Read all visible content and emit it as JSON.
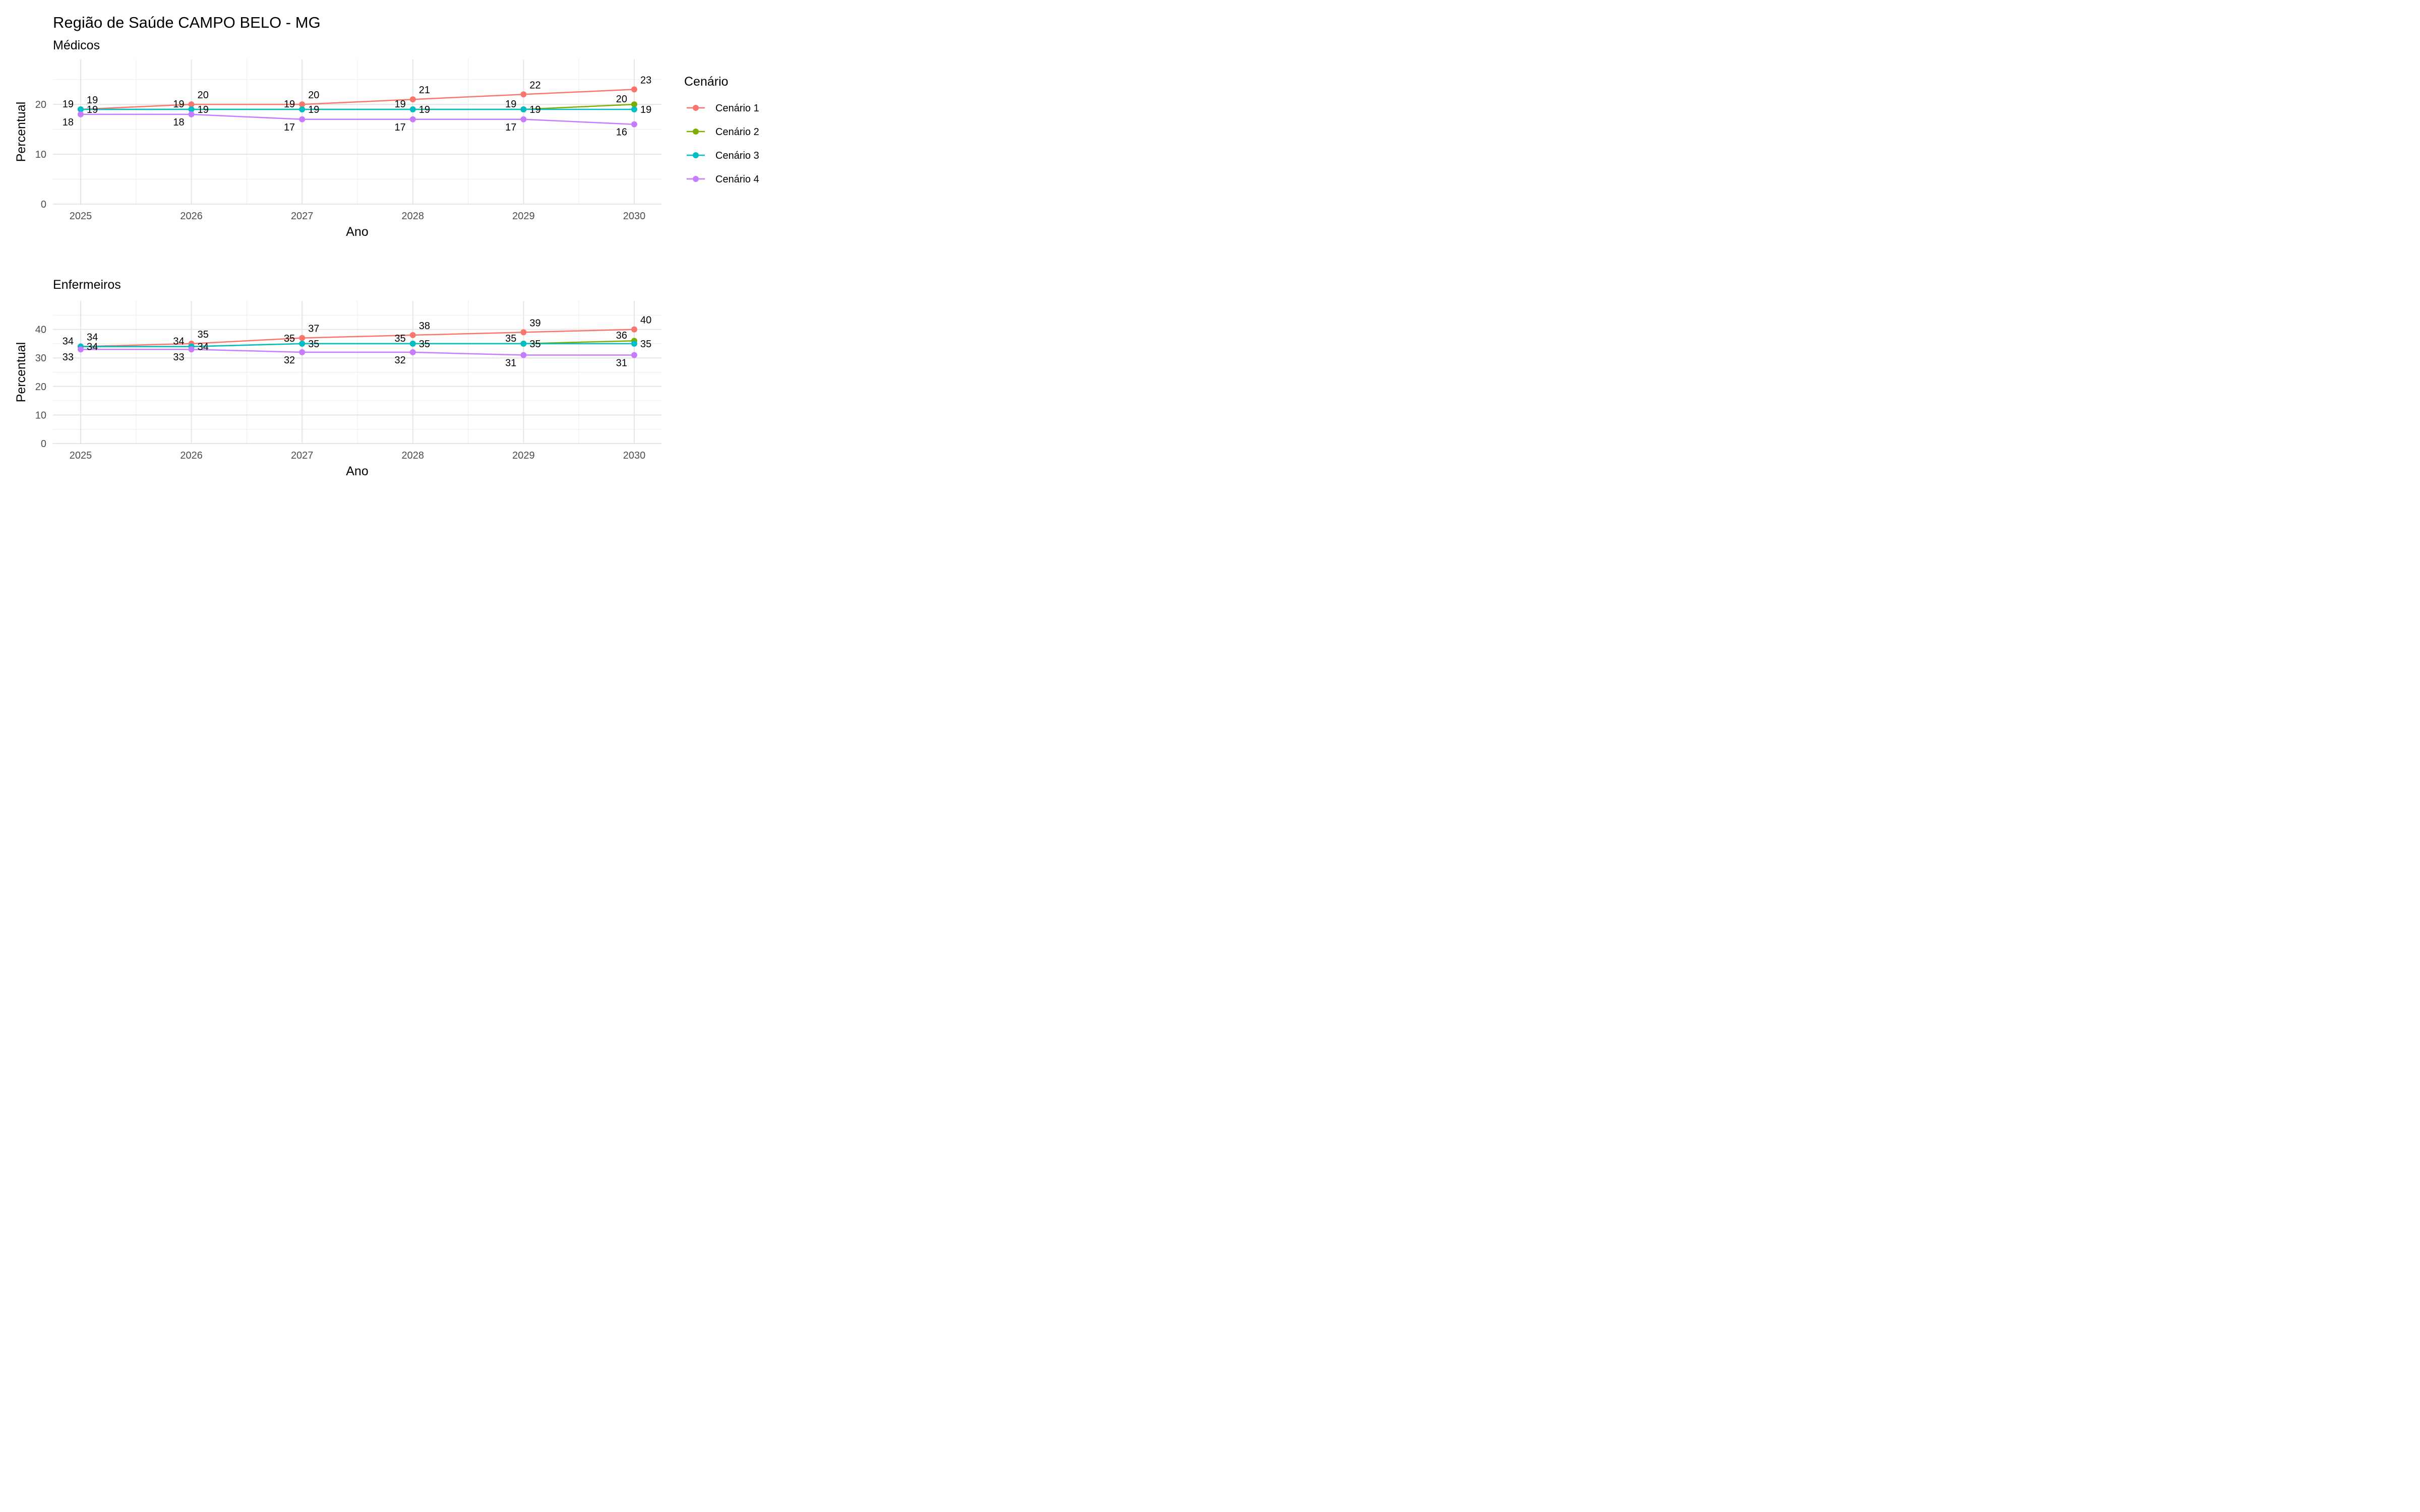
{
  "title": "Região de Saúde CAMPO BELO - MG",
  "legend": {
    "title": "Cenário",
    "placement": "right",
    "entries": [
      "Cenário 1",
      "Cenário 2",
      "Cenário 3",
      "Cenário 4"
    ]
  },
  "colors": {
    "Cenário 1": "#F8766D",
    "Cenário 2": "#7CAE00",
    "Cenário 3": "#00BFC4",
    "Cenário 4": "#C77CFF"
  },
  "chart_data": [
    {
      "type": "line",
      "subtitle": "Médicos",
      "xlabel": "Ano",
      "ylabel": "Percentual",
      "x": [
        2025,
        2026,
        2027,
        2028,
        2029,
        2030
      ],
      "ylim": [
        0,
        29
      ],
      "yticks": [
        0,
        10,
        20
      ],
      "grid": true,
      "series": [
        {
          "name": "Cenário 1",
          "values": [
            19,
            20,
            20,
            21,
            22,
            23
          ]
        },
        {
          "name": "Cenário 2",
          "values": [
            19,
            19,
            19,
            19,
            19,
            20
          ]
        },
        {
          "name": "Cenário 3",
          "values": [
            19,
            19,
            19,
            19,
            19,
            19
          ]
        },
        {
          "name": "Cenário 4",
          "values": [
            18,
            18,
            17,
            17,
            17,
            16
          ]
        }
      ]
    },
    {
      "type": "line",
      "subtitle": "Enfermeiros",
      "xlabel": "Ano",
      "ylabel": "Percentual",
      "x": [
        2025,
        2026,
        2027,
        2028,
        2029,
        2030
      ],
      "ylim": [
        0,
        50
      ],
      "yticks": [
        0,
        10,
        20,
        30,
        40
      ],
      "grid": true,
      "series": [
        {
          "name": "Cenário 1",
          "values": [
            34,
            35,
            37,
            38,
            39,
            40
          ]
        },
        {
          "name": "Cenário 2",
          "values": [
            34,
            34,
            35,
            35,
            35,
            36
          ]
        },
        {
          "name": "Cenário 3",
          "values": [
            34,
            34,
            35,
            35,
            35,
            35
          ]
        },
        {
          "name": "Cenário 4",
          "values": [
            33,
            33,
            32,
            32,
            31,
            31
          ]
        }
      ]
    }
  ]
}
